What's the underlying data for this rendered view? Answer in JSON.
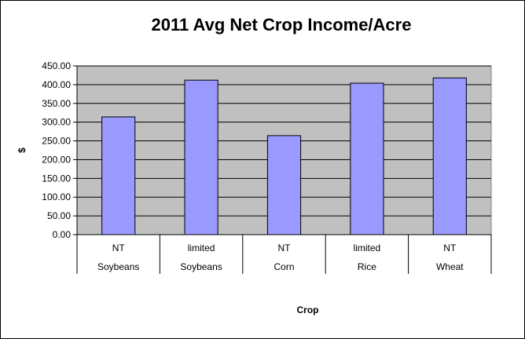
{
  "chart_data": {
    "type": "bar",
    "title": "2011 Avg Net Crop Income/Acre",
    "xlabel": "Crop",
    "ylabel": "$",
    "ylim": [
      0,
      450
    ],
    "yticks": [
      "0.00",
      "50.00",
      "100.00",
      "150.00",
      "200.00",
      "250.00",
      "300.00",
      "350.00",
      "400.00",
      "450.00"
    ],
    "grid": true,
    "legend": "none",
    "categories": [
      {
        "top": "NT",
        "bottom": "Soybeans"
      },
      {
        "top": "limited",
        "bottom": "Soybeans"
      },
      {
        "top": "NT",
        "bottom": "Corn"
      },
      {
        "top": "limited",
        "bottom": "Rice"
      },
      {
        "top": "NT",
        "bottom": "Wheat"
      }
    ],
    "values": [
      314,
      412,
      264,
      404,
      418
    ],
    "colors": {
      "bar_fill": "#9999ff",
      "bar_stroke": "#000000",
      "plot_background": "#c0c0c0",
      "gridline": "#000000"
    }
  }
}
